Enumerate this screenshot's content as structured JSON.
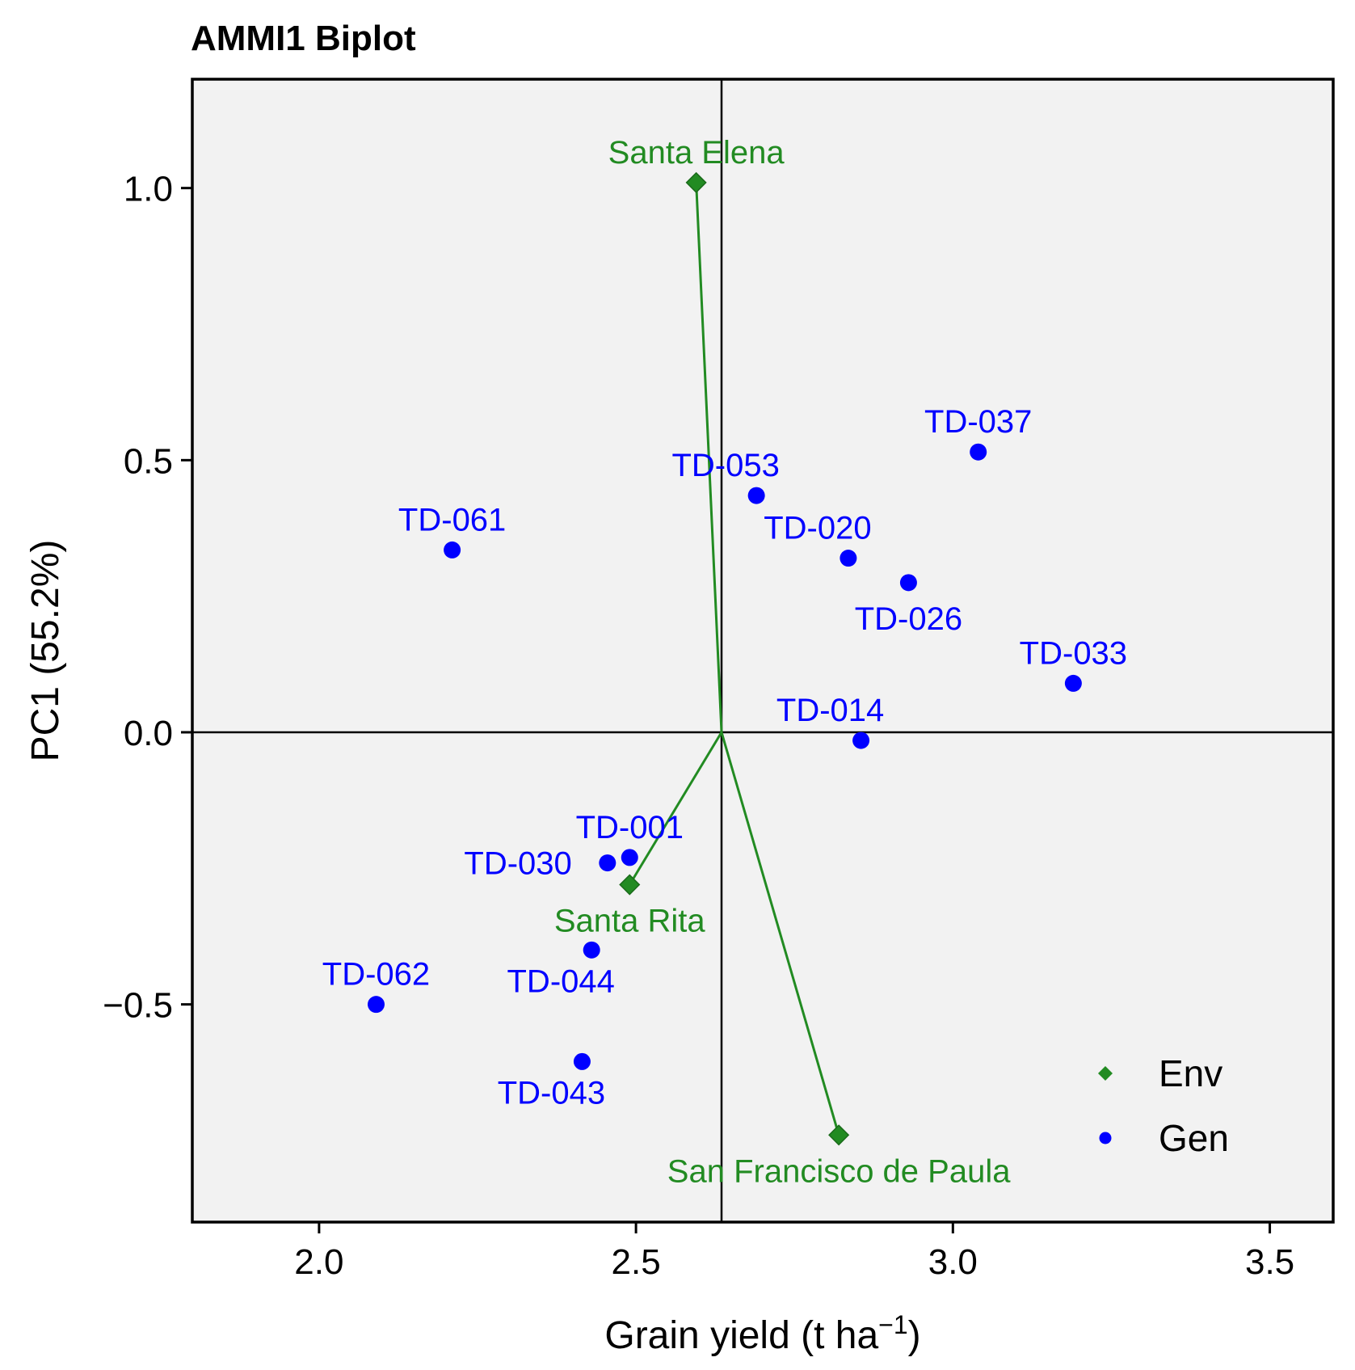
{
  "chart_data": {
    "type": "scatter",
    "title": "AMMI1 Biplot",
    "xlabel": "Grain yield (t ha",
    "xlabel_superscript": "−1",
    "xlabel_suffix": ")",
    "ylabel": "PC1 (55.2%)",
    "xlim": [
      1.8,
      3.6
    ],
    "ylim": [
      -0.9,
      1.2
    ],
    "xticks": [
      2.0,
      2.5,
      3.0,
      3.5
    ],
    "xtick_labels": [
      "2.0",
      "2.5",
      "3.0",
      "3.5"
    ],
    "yticks": [
      -0.5,
      0.0,
      0.5,
      1.0
    ],
    "ytick_labels": [
      "−0.5",
      "0.0",
      "0.5",
      "1.0"
    ],
    "origin": {
      "x": 2.635,
      "y": 0.0
    },
    "grid": false,
    "legend_position": "bottom-right",
    "colors": {
      "Env": "#228B22",
      "Gen": "#0000FF",
      "background": "#F2F2F2"
    },
    "series": [
      {
        "name": "Env",
        "marker": "diamond",
        "points": [
          {
            "label": "Santa Elena",
            "x": 2.595,
            "y": 1.01,
            "label_pos": "above"
          },
          {
            "label": "Santa Rita",
            "x": 2.49,
            "y": -0.28,
            "label_pos": "below"
          },
          {
            "label": "San Francisco de Paula",
            "x": 2.82,
            "y": -0.74,
            "label_pos": "below"
          }
        ]
      },
      {
        "name": "Gen",
        "marker": "circle",
        "points": [
          {
            "label": "TD-037",
            "x": 3.04,
            "y": 0.515,
            "label_pos": "above"
          },
          {
            "label": "TD-053",
            "x": 2.69,
            "y": 0.435,
            "label_pos": "above-left"
          },
          {
            "label": "TD-061",
            "x": 2.21,
            "y": 0.335,
            "label_pos": "above"
          },
          {
            "label": "TD-020",
            "x": 2.835,
            "y": 0.32,
            "label_pos": "above-left"
          },
          {
            "label": "TD-026",
            "x": 2.93,
            "y": 0.275,
            "label_pos": "below"
          },
          {
            "label": "TD-033",
            "x": 3.19,
            "y": 0.09,
            "label_pos": "above"
          },
          {
            "label": "TD-014",
            "x": 2.855,
            "y": -0.015,
            "label_pos": "above-left"
          },
          {
            "label": "TD-001",
            "x": 2.49,
            "y": -0.23,
            "label_pos": "above"
          },
          {
            "label": "TD-030",
            "x": 2.455,
            "y": -0.24,
            "label_pos": "left"
          },
          {
            "label": "TD-044",
            "x": 2.43,
            "y": -0.4,
            "label_pos": "below-left"
          },
          {
            "label": "TD-062",
            "x": 2.09,
            "y": -0.5,
            "label_pos": "above"
          },
          {
            "label": "TD-043",
            "x": 2.415,
            "y": -0.605,
            "label_pos": "below-left"
          }
        ]
      }
    ]
  }
}
